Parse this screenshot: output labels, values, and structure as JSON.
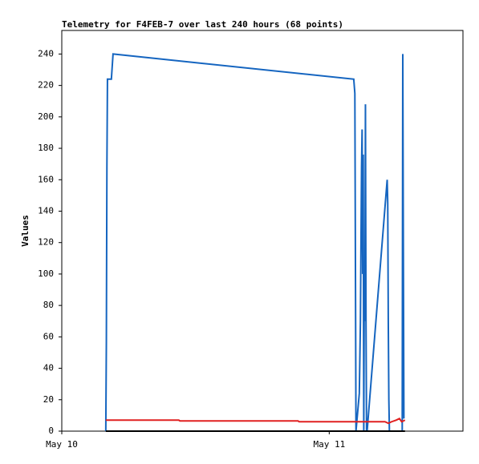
{
  "chart_data": {
    "type": "line",
    "title": "Telemetry for F4FEB-7 over last 240 hours (68 points)",
    "y_label": "Values",
    "xlim": [
      0,
      36
    ],
    "xticks": [
      {
        "value": 0,
        "label": "May 10"
      },
      {
        "value": 24,
        "label": "May 11"
      }
    ],
    "ylim": [
      0,
      255
    ],
    "yticks": [
      0,
      20,
      40,
      60,
      80,
      100,
      120,
      140,
      160,
      180,
      200,
      220,
      240
    ],
    "series": [
      {
        "color": "#1565c0",
        "x": [
          3.95,
          4.0,
          4.05,
          4.1,
          4.15,
          4.45,
          4.6,
          26.2,
          26.3,
          26.4,
          26.7,
          26.8,
          26.85,
          26.9,
          26.95,
          27.0,
          27.05,
          27.1,
          27.15,
          27.2,
          27.25,
          27.3,
          27.35,
          27.4,
          29.2,
          29.25,
          29.3,
          29.35,
          29.4,
          30.55,
          30.6,
          30.65,
          30.7
        ],
        "values": [
          0,
          56,
          168,
          224,
          224,
          224,
          240,
          224,
          215,
          0,
          24,
          70,
          120,
          168,
          192,
          100,
          176,
          0,
          104,
          70,
          208,
          70,
          0,
          0,
          160,
          145,
          70,
          20,
          0,
          0,
          240,
          120,
          8
        ]
      },
      {
        "color": "#e02020",
        "x": [
          3.95,
          10.5,
          10.6,
          21.2,
          21.3,
          29.0,
          29.3,
          29.6,
          30.0,
          30.3,
          30.5,
          30.8
        ],
        "values": [
          7,
          7,
          6.5,
          6.5,
          6,
          6,
          5,
          6,
          7,
          8,
          6,
          7
        ]
      },
      {
        "color": "#000000",
        "x": [
          3.95,
          30.8
        ],
        "values": [
          0,
          0
        ]
      }
    ]
  }
}
